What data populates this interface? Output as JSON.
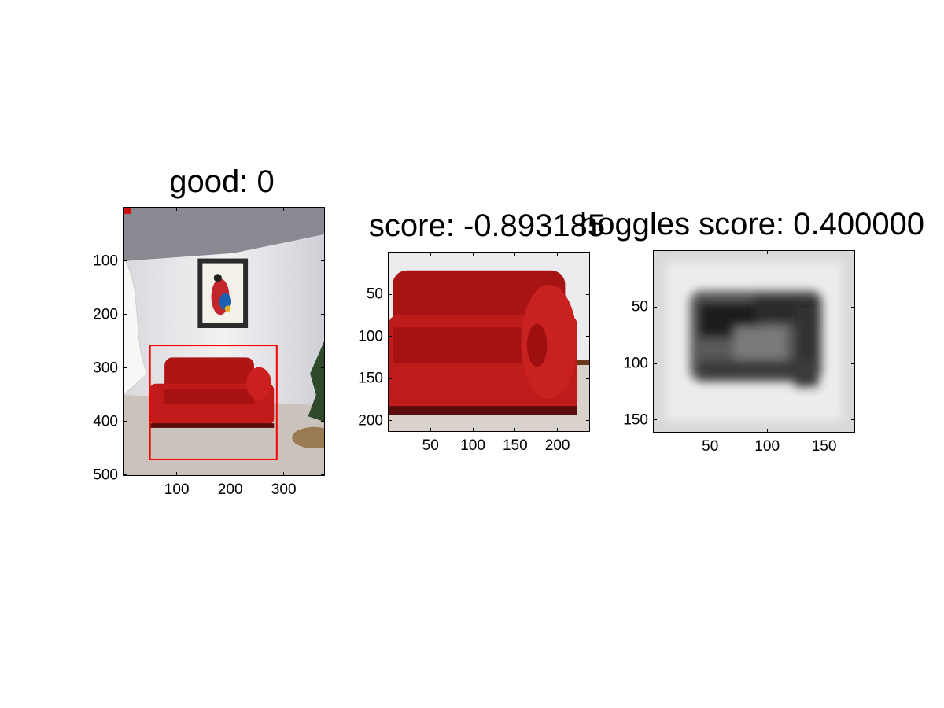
{
  "chart_data": [
    {
      "type": "image",
      "title": "good: 0",
      "xlim": [
        0.5,
        375.5
      ],
      "ylim": [
        0.5,
        500.5
      ],
      "y_inverted": true,
      "xticks": [
        100,
        200,
        300
      ],
      "yticks": [
        100,
        200,
        300,
        400,
        500
      ],
      "annotations": [
        {
          "type": "rectangle",
          "color": "#ff0000",
          "x0": 50,
          "y0": 258,
          "x1": 287,
          "y1": 471
        }
      ],
      "content": "room photo with red sofa and framed painting"
    },
    {
      "type": "image",
      "title": "score: -0.893185",
      "xlim": [
        0.5,
        237.5
      ],
      "ylim": [
        0.5,
        212.5
      ],
      "y_inverted": true,
      "xticks": [
        50,
        100,
        150,
        200
      ],
      "yticks": [
        50,
        100,
        150,
        200
      ],
      "content": "cropped red sofa"
    },
    {
      "type": "heatmap",
      "title": "hoggles score: 0.400000",
      "colormap": "gray",
      "xlim": [
        0.5,
        176.5
      ],
      "ylim": [
        0.5,
        160.5
      ],
      "y_inverted": true,
      "xticks": [
        50,
        100,
        150
      ],
      "yticks": [
        50,
        100,
        150
      ],
      "content": "grayscale HOG inversion of sofa"
    }
  ]
}
